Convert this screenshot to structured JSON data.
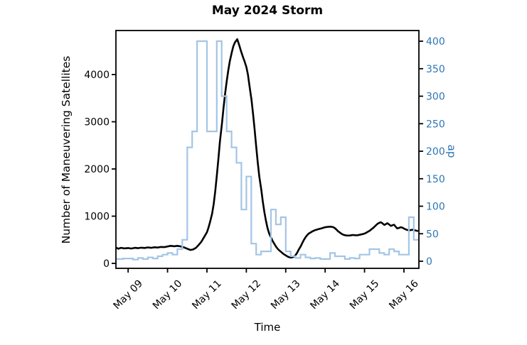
{
  "chart_data": {
    "type": "line",
    "title": "May 2024 Storm",
    "xlabel": "Time",
    "ylabel_left": "Number of Maneuvering Satellites",
    "ylabel_right": "ap",
    "legend": "none",
    "grid": false,
    "x_tick_labels": [
      "May 09",
      "May 10",
      "May 11",
      "May 12",
      "May 13",
      "May 14",
      "May 15",
      "May 16"
    ],
    "x_tick_days": [
      0,
      1,
      2,
      3,
      4,
      5,
      6,
      7
    ],
    "xlim_days": [
      -0.31,
      7.38
    ],
    "left_axis": {
      "ticks": [
        0,
        1000,
        2000,
        3000,
        4000
      ],
      "lim": [
        -105,
        4933
      ],
      "color": "#000000"
    },
    "right_axis": {
      "ticks": [
        0,
        50,
        100,
        150,
        200,
        250,
        300,
        350,
        400
      ],
      "lim": [
        -12.9,
        419.4
      ],
      "color": "#2e75b5"
    },
    "series": [
      {
        "name": "Number of Maneuvering Satellites",
        "axis": "left",
        "type": "line",
        "color": "#000000",
        "width": 2.6,
        "points": [
          [
            -0.31,
            335
          ],
          [
            -0.25,
            310
          ],
          [
            -0.18,
            330
          ],
          [
            -0.1,
            318
          ],
          [
            0.0,
            325
          ],
          [
            0.08,
            315
          ],
          [
            0.17,
            330
          ],
          [
            0.25,
            322
          ],
          [
            0.33,
            332
          ],
          [
            0.42,
            326
          ],
          [
            0.5,
            338
          ],
          [
            0.58,
            330
          ],
          [
            0.67,
            342
          ],
          [
            0.75,
            336
          ],
          [
            0.83,
            348
          ],
          [
            0.92,
            345
          ],
          [
            1.0,
            358
          ],
          [
            1.08,
            372
          ],
          [
            1.17,
            362
          ],
          [
            1.25,
            372
          ],
          [
            1.33,
            360
          ],
          [
            1.42,
            338
          ],
          [
            1.5,
            310
          ],
          [
            1.58,
            285
          ],
          [
            1.65,
            295
          ],
          [
            1.72,
            330
          ],
          [
            1.79,
            390
          ],
          [
            1.86,
            460
          ],
          [
            1.93,
            560
          ],
          [
            2.0,
            660
          ],
          [
            2.04,
            760
          ],
          [
            2.08,
            880
          ],
          [
            2.13,
            1050
          ],
          [
            2.17,
            1250
          ],
          [
            2.21,
            1520
          ],
          [
            2.25,
            1850
          ],
          [
            2.29,
            2200
          ],
          [
            2.33,
            2580
          ],
          [
            2.38,
            2950
          ],
          [
            2.42,
            3280
          ],
          [
            2.46,
            3580
          ],
          [
            2.5,
            3850
          ],
          [
            2.54,
            4080
          ],
          [
            2.58,
            4280
          ],
          [
            2.63,
            4470
          ],
          [
            2.67,
            4600
          ],
          [
            2.71,
            4680
          ],
          [
            2.77,
            4750
          ],
          [
            2.82,
            4620
          ],
          [
            2.87,
            4480
          ],
          [
            2.92,
            4360
          ],
          [
            2.96,
            4270
          ],
          [
            3.0,
            4160
          ],
          [
            3.04,
            4000
          ],
          [
            3.08,
            3760
          ],
          [
            3.13,
            3470
          ],
          [
            3.17,
            3170
          ],
          [
            3.21,
            2840
          ],
          [
            3.25,
            2480
          ],
          [
            3.29,
            2140
          ],
          [
            3.33,
            1840
          ],
          [
            3.38,
            1560
          ],
          [
            3.42,
            1300
          ],
          [
            3.46,
            1080
          ],
          [
            3.5,
            890
          ],
          [
            3.54,
            740
          ],
          [
            3.58,
            630
          ],
          [
            3.63,
            540
          ],
          [
            3.67,
            470
          ],
          [
            3.71,
            415
          ],
          [
            3.75,
            360
          ],
          [
            3.79,
            315
          ],
          [
            3.83,
            280
          ],
          [
            3.88,
            245
          ],
          [
            3.92,
            215
          ],
          [
            3.96,
            190
          ],
          [
            4.0,
            170
          ],
          [
            4.04,
            148
          ],
          [
            4.08,
            132
          ],
          [
            4.13,
            124
          ],
          [
            4.17,
            128
          ],
          [
            4.21,
            145
          ],
          [
            4.25,
            175
          ],
          [
            4.29,
            225
          ],
          [
            4.33,
            290
          ],
          [
            4.38,
            360
          ],
          [
            4.42,
            430
          ],
          [
            4.46,
            495
          ],
          [
            4.5,
            550
          ],
          [
            4.54,
            595
          ],
          [
            4.58,
            630
          ],
          [
            4.63,
            655
          ],
          [
            4.67,
            675
          ],
          [
            4.71,
            690
          ],
          [
            4.75,
            705
          ],
          [
            4.79,
            715
          ],
          [
            4.83,
            725
          ],
          [
            4.88,
            735
          ],
          [
            4.92,
            745
          ],
          [
            4.96,
            755
          ],
          [
            5.0,
            765
          ],
          [
            5.04,
            770
          ],
          [
            5.08,
            775
          ],
          [
            5.13,
            778
          ],
          [
            5.17,
            775
          ],
          [
            5.21,
            765
          ],
          [
            5.25,
            745
          ],
          [
            5.29,
            715
          ],
          [
            5.33,
            680
          ],
          [
            5.38,
            650
          ],
          [
            5.42,
            625
          ],
          [
            5.46,
            608
          ],
          [
            5.5,
            598
          ],
          [
            5.54,
            592
          ],
          [
            5.58,
            590
          ],
          [
            5.63,
            592
          ],
          [
            5.67,
            597
          ],
          [
            5.71,
            602
          ],
          [
            5.75,
            598
          ],
          [
            5.79,
            594
          ],
          [
            5.83,
            598
          ],
          [
            5.88,
            606
          ],
          [
            5.92,
            614
          ],
          [
            5.96,
            622
          ],
          [
            6.0,
            632
          ],
          [
            6.04,
            648
          ],
          [
            6.08,
            668
          ],
          [
            6.13,
            692
          ],
          [
            6.17,
            718
          ],
          [
            6.21,
            745
          ],
          [
            6.25,
            775
          ],
          [
            6.29,
            808
          ],
          [
            6.33,
            838
          ],
          [
            6.38,
            862
          ],
          [
            6.42,
            870
          ],
          [
            6.46,
            845
          ],
          [
            6.5,
            815
          ],
          [
            6.54,
            830
          ],
          [
            6.58,
            852
          ],
          [
            6.63,
            820
          ],
          [
            6.67,
            795
          ],
          [
            6.71,
            808
          ],
          [
            6.75,
            818
          ],
          [
            6.79,
            778
          ],
          [
            6.83,
            742
          ],
          [
            6.88,
            752
          ],
          [
            6.92,
            765
          ],
          [
            6.96,
            758
          ],
          [
            7.0,
            738
          ],
          [
            7.04,
            722
          ],
          [
            7.08,
            708
          ],
          [
            7.13,
            700
          ],
          [
            7.17,
            705
          ],
          [
            7.21,
            712
          ],
          [
            7.25,
            708
          ],
          [
            7.29,
            698
          ],
          [
            7.34,
            688
          ]
        ]
      },
      {
        "name": "ap",
        "axis": "right",
        "type": "step",
        "color": "#a4c5e5",
        "width": 2.2,
        "start_day": -0.5,
        "step_days": 0.125,
        "values": [
          5,
          4,
          4,
          5,
          5,
          3,
          6,
          4,
          7,
          5,
          9,
          12,
          15,
          12,
          22,
          39,
          207,
          236,
          400,
          400,
          236,
          236,
          400,
          300,
          236,
          207,
          179,
          94,
          154,
          32,
          12,
          18,
          18,
          94,
          67,
          80,
          18,
          9,
          6,
          12,
          7,
          5,
          6,
          4,
          4,
          15,
          9,
          9,
          4,
          6,
          5,
          12,
          12,
          22,
          22,
          15,
          12,
          22,
          18,
          12,
          12,
          80,
          39,
          39
        ]
      }
    ]
  }
}
